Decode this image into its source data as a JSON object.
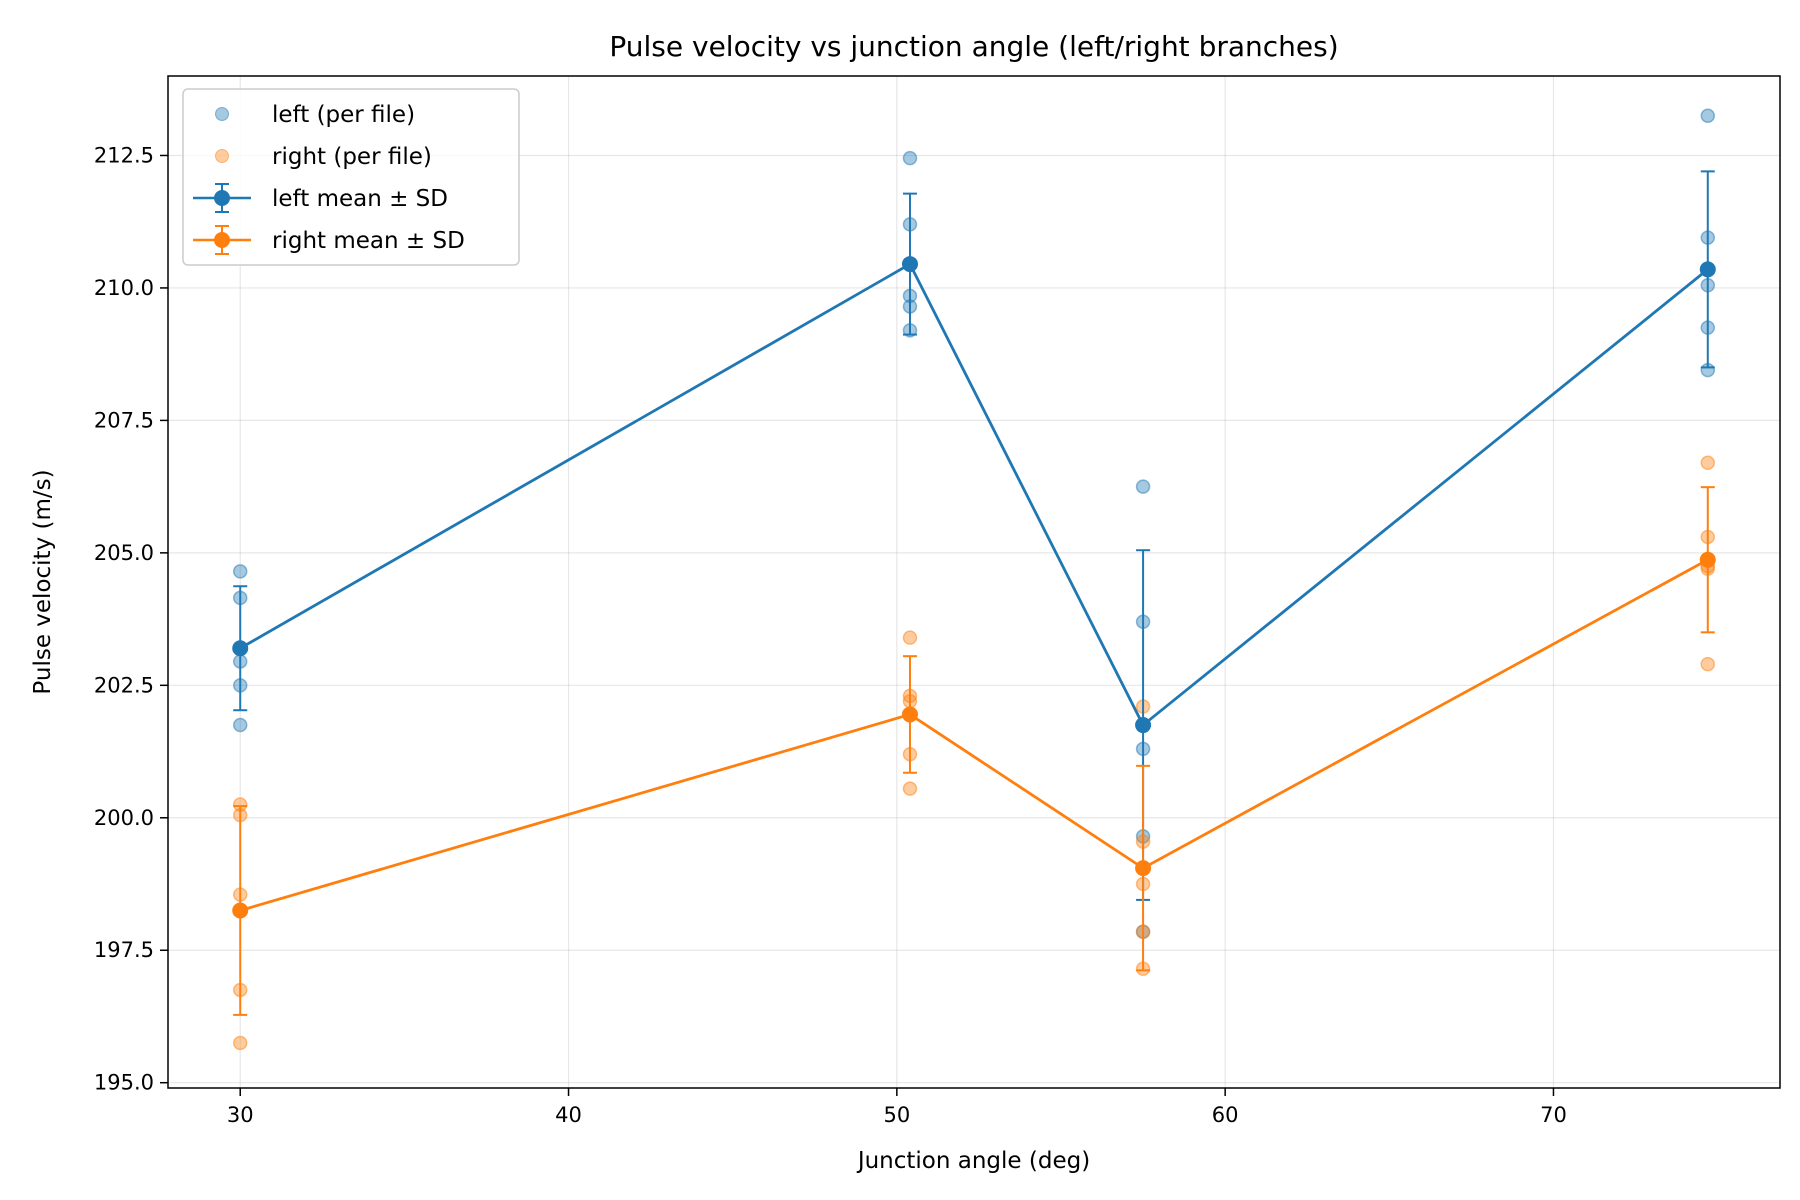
{
  "chart_data": {
    "type": "scatter",
    "title": "Pulse velocity vs junction angle (left/right branches)",
    "xlabel": "Junction angle (deg)",
    "ylabel": "Pulse velocity (m/s)",
    "xlim": [
      27.8,
      76.9
    ],
    "ylim": [
      194.9,
      214.0
    ],
    "x_ticks": [
      30,
      40,
      50,
      60,
      70
    ],
    "x_tick_labels": [
      "30",
      "40",
      "50",
      "60",
      "70"
    ],
    "y_ticks": [
      195.0,
      197.5,
      200.0,
      202.5,
      205.0,
      207.5,
      210.0,
      212.5
    ],
    "y_tick_labels": [
      "195.0",
      "197.5",
      "200.0",
      "202.5",
      "205.0",
      "207.5",
      "210.0",
      "212.5"
    ],
    "grid": true,
    "legend_position": "top-left",
    "series": [
      {
        "name": "left (per file)",
        "kind": "scatter",
        "color": "#1f77b4",
        "points": [
          {
            "x": 30,
            "y": 204.65
          },
          {
            "x": 30,
            "y": 204.15
          },
          {
            "x": 30,
            "y": 202.95
          },
          {
            "x": 30,
            "y": 202.5
          },
          {
            "x": 30,
            "y": 201.75
          },
          {
            "x": 50.4,
            "y": 212.45
          },
          {
            "x": 50.4,
            "y": 211.2
          },
          {
            "x": 50.4,
            "y": 209.85
          },
          {
            "x": 50.4,
            "y": 209.65
          },
          {
            "x": 50.4,
            "y": 209.2
          },
          {
            "x": 57.5,
            "y": 206.25
          },
          {
            "x": 57.5,
            "y": 203.7
          },
          {
            "x": 57.5,
            "y": 201.3
          },
          {
            "x": 57.5,
            "y": 199.65
          },
          {
            "x": 57.5,
            "y": 197.85
          },
          {
            "x": 74.7,
            "y": 213.25
          },
          {
            "x": 74.7,
            "y": 210.95
          },
          {
            "x": 74.7,
            "y": 210.05
          },
          {
            "x": 74.7,
            "y": 209.25
          },
          {
            "x": 74.7,
            "y": 208.45
          }
        ]
      },
      {
        "name": "right (per file)",
        "kind": "scatter",
        "color": "#ff7f0e",
        "points": [
          {
            "x": 30,
            "y": 200.25
          },
          {
            "x": 30,
            "y": 200.05
          },
          {
            "x": 30,
            "y": 198.55
          },
          {
            "x": 30,
            "y": 196.75
          },
          {
            "x": 30,
            "y": 195.75
          },
          {
            "x": 50.4,
            "y": 203.4
          },
          {
            "x": 50.4,
            "y": 202.3
          },
          {
            "x": 50.4,
            "y": 202.2
          },
          {
            "x": 50.4,
            "y": 201.2
          },
          {
            "x": 50.4,
            "y": 200.55
          },
          {
            "x": 57.5,
            "y": 202.1
          },
          {
            "x": 57.5,
            "y": 199.55
          },
          {
            "x": 57.5,
            "y": 198.75
          },
          {
            "x": 57.5,
            "y": 197.85
          },
          {
            "x": 57.5,
            "y": 197.15
          },
          {
            "x": 74.7,
            "y": 206.7
          },
          {
            "x": 74.7,
            "y": 205.3
          },
          {
            "x": 74.7,
            "y": 204.75
          },
          {
            "x": 74.7,
            "y": 204.7
          },
          {
            "x": 74.7,
            "y": 202.9
          }
        ]
      },
      {
        "name": "left mean ± SD",
        "kind": "errorbar",
        "color": "#1f77b4",
        "x": [
          30,
          50.4,
          57.5,
          74.7
        ],
        "y": [
          203.2,
          210.45,
          201.75,
          210.35
        ],
        "sd": [
          1.17,
          1.33,
          3.3,
          1.85
        ]
      },
      {
        "name": "right mean ± SD",
        "kind": "errorbar",
        "color": "#ff7f0e",
        "x": [
          30,
          50.4,
          57.5,
          74.7
        ],
        "y": [
          198.25,
          201.95,
          199.05,
          204.87
        ],
        "sd": [
          1.97,
          1.1,
          1.93,
          1.37
        ]
      }
    ]
  }
}
